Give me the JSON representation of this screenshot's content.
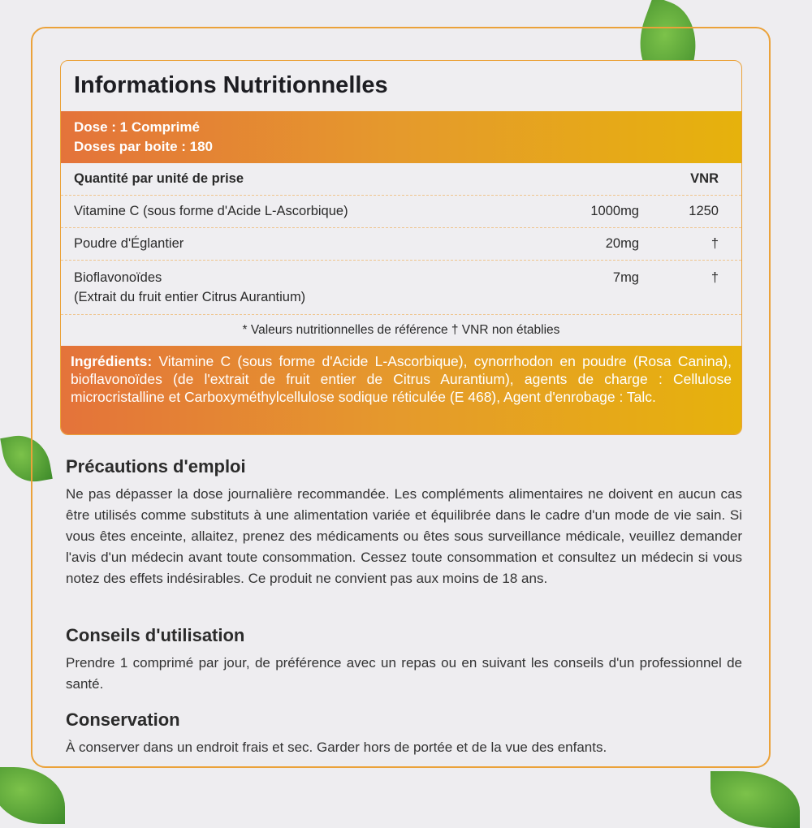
{
  "title": "Informations Nutritionnelles",
  "dose": "Dose : 1 Comprimé",
  "doses_per_box": "Doses par boite : 180",
  "table": {
    "header": {
      "name": "Quantité par unité de prise",
      "vnr": "VNR"
    },
    "rows": [
      {
        "name": "Vitamine C (sous forme d'Acide L-Ascorbique)",
        "amount": "1000mg",
        "vnr": "1250"
      },
      {
        "name": "Poudre d'Églantier",
        "amount": "20mg",
        "vnr": "†"
      },
      {
        "name": "Bioflavonoïdes",
        "name2": "(Extrait du fruit entier Citrus Aurantium)",
        "amount": "7mg",
        "vnr": "†"
      }
    ],
    "footnote": "* Valeurs nutritionnelles de référence † VNR non établies"
  },
  "ingredients": {
    "label": "Ingrédients:",
    "text": " Vitamine C (sous forme d'Acide L-Ascorbique), cynorrhodon en poudre (Rosa Canina), bioflavonoïdes (de l'extrait de fruit entier de Citrus Aurantium), agents de charge : Cellulose microcristalline et Carboxyméthylcellulose sodique réticulée (E 468), Agent d'enrobage : Talc."
  },
  "sections": [
    {
      "title": "Précautions d'emploi",
      "text": "Ne pas dépasser la dose journalière recommandée. Les compléments alimentaires ne doivent en aucun cas être utilisés comme substituts à une alimentation variée et équilibrée dans le cadre d'un mode de vie sain. Si vous êtes enceinte, allaitez, prenez des médicaments ou êtes sous surveillance médicale, veuillez demander l'avis d'un médecin avant toute consommation. Cessez toute consommation et consultez un médecin si vous notez des effets indésirables. Ce produit ne convient pas aux moins de 18 ans."
    },
    {
      "title": "Conseils d'utilisation",
      "text": "Prendre 1 comprimé par jour, de préférence avec un repas ou en suivant les conseils d'un professionnel de santé."
    },
    {
      "title": "Conservation",
      "text": "À conserver dans un endroit frais et sec. Garder hors de portée et de la vue des enfants."
    }
  ],
  "colors": {
    "accent_start": "#e4733a",
    "accent_end": "#e6b20c",
    "border": "#eba23a",
    "leaf": "#5aa535"
  }
}
